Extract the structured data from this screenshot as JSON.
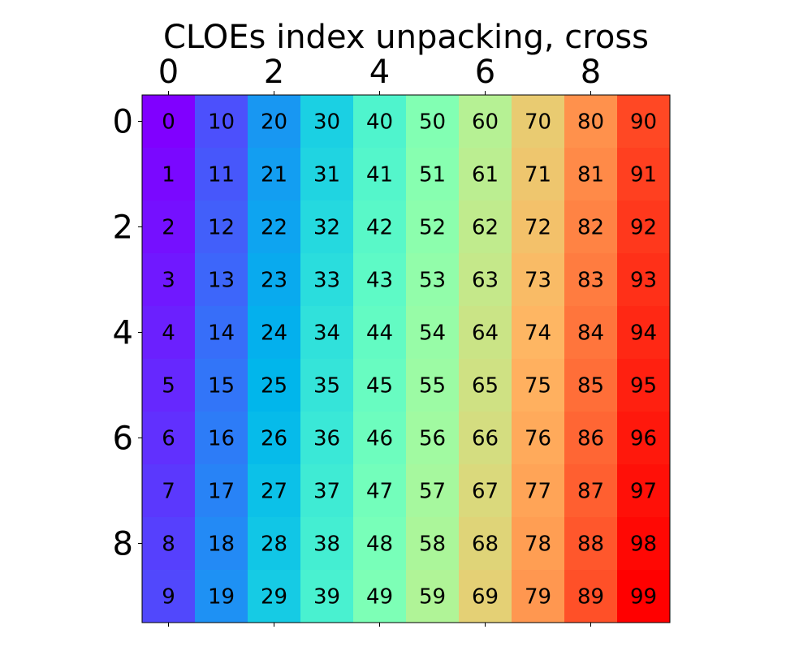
{
  "chart_data": {
    "type": "heatmap",
    "title": "CLOEs index unpacking, cross",
    "xlabel": "",
    "ylabel": "",
    "x_ticks": [
      0,
      2,
      4,
      6,
      8
    ],
    "y_ticks": [
      0,
      2,
      4,
      6,
      8
    ],
    "x_range": [
      -0.5,
      9.5
    ],
    "y_range": [
      -0.5,
      9.5
    ],
    "x_axis_position": "top",
    "y_axis_inverted": true,
    "colormap": "rainbow",
    "grid": false,
    "rows": 10,
    "cols": 10,
    "values": [
      [
        0,
        10,
        20,
        30,
        40,
        50,
        60,
        70,
        80,
        90
      ],
      [
        1,
        11,
        21,
        31,
        41,
        51,
        61,
        71,
        81,
        91
      ],
      [
        2,
        12,
        22,
        32,
        42,
        52,
        62,
        72,
        82,
        92
      ],
      [
        3,
        13,
        23,
        33,
        43,
        53,
        63,
        73,
        83,
        93
      ],
      [
        4,
        14,
        24,
        34,
        44,
        54,
        64,
        74,
        84,
        94
      ],
      [
        5,
        15,
        25,
        35,
        45,
        55,
        65,
        75,
        85,
        95
      ],
      [
        6,
        16,
        26,
        36,
        46,
        56,
        66,
        76,
        86,
        96
      ],
      [
        7,
        17,
        27,
        37,
        47,
        57,
        67,
        77,
        87,
        97
      ],
      [
        8,
        18,
        28,
        38,
        48,
        58,
        68,
        78,
        88,
        98
      ],
      [
        9,
        19,
        29,
        39,
        49,
        59,
        69,
        79,
        89,
        99
      ]
    ],
    "value_range": [
      0,
      99
    ]
  }
}
